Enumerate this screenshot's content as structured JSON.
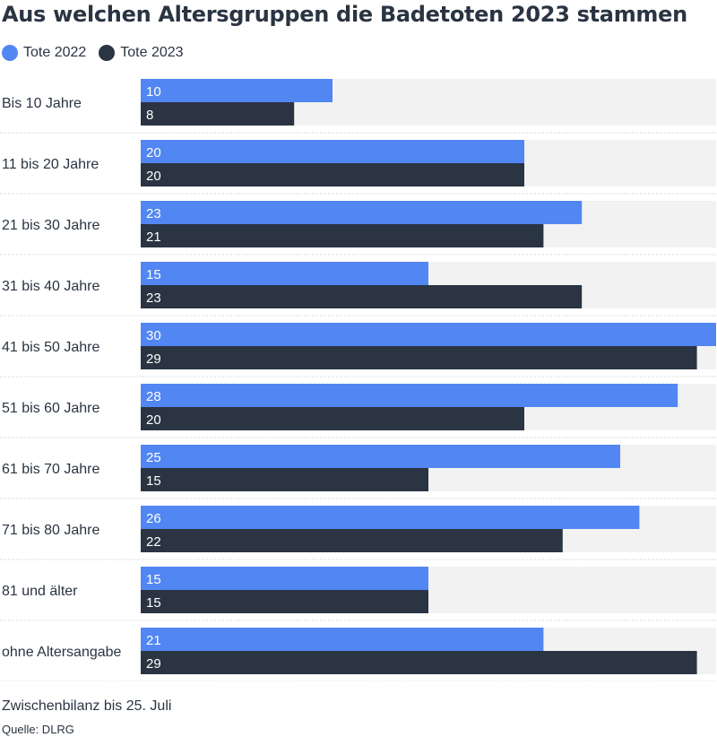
{
  "chart_data": {
    "type": "bar",
    "orientation": "horizontal",
    "title": "Aus welchen Altersgruppen die Badetoten 2023 stammen",
    "categories": [
      "Bis 10 Jahre",
      "11 bis 20 Jahre",
      "21 bis 30 Jahre",
      "31 bis 40 Jahre",
      "41 bis 50 Jahre",
      "51 bis 60 Jahre",
      "61 bis 70 Jahre",
      "71 bis 80 Jahre",
      "81 und älter",
      "ohne Altersangabe"
    ],
    "series": [
      {
        "name": "Tote 2022",
        "color": "#5286f2",
        "values": [
          10,
          20,
          23,
          15,
          30,
          28,
          25,
          26,
          15,
          21
        ]
      },
      {
        "name": "Tote 2023",
        "color": "#2a3442",
        "values": [
          8,
          20,
          21,
          23,
          29,
          20,
          15,
          22,
          15,
          29
        ]
      }
    ],
    "xlim": [
      0,
      30
    ],
    "track_color": "#f2f2f2",
    "legend": "top-left",
    "grid": false
  },
  "footer": {
    "note": "Zwischenbilanz bis 25. Juli",
    "source": "Quelle: DLRG"
  }
}
